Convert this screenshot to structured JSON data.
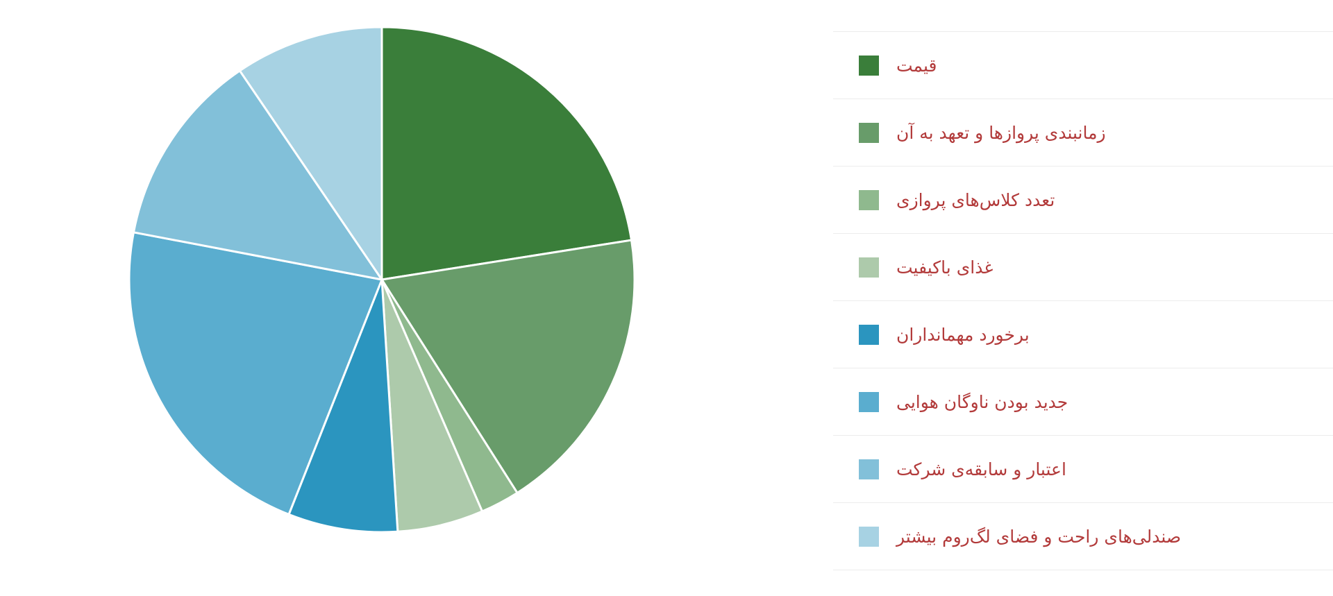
{
  "chart_data": {
    "type": "pie",
    "categories": [
      "قیمت",
      "زمانبندی پروازها و تعهد به آن",
      "تعدد کلاس‌های پروازی",
      "غذای باکیفیت",
      "برخورد مهمانداران",
      "جدید بودن ناوگان هوایی",
      "اعتبار و سابقه‌ی شرکت",
      "صندلی‌های راحت و فضای لگ‌روم بیشتر"
    ],
    "values": [
      22.5,
      18.5,
      2.5,
      5.5,
      7.0,
      22.0,
      12.5,
      9.5
    ],
    "colors": [
      "#3a7e3a",
      "#689c6a",
      "#8fb98e",
      "#adcaab",
      "#2b95bf",
      "#5aadcf",
      "#82c0d9",
      "#a7d2e3"
    ],
    "legend": "right",
    "title": "",
    "start_angle_deg": 0,
    "direction": "clockwise"
  }
}
